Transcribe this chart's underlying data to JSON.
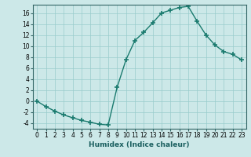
{
  "x": [
    0,
    1,
    2,
    3,
    4,
    5,
    6,
    7,
    8,
    9,
    10,
    11,
    12,
    13,
    14,
    15,
    16,
    17,
    18,
    19,
    20,
    21,
    22,
    23
  ],
  "y": [
    0,
    -1,
    -1.8,
    -2.5,
    -3,
    -3.5,
    -3.8,
    -4.2,
    -4.3,
    2.5,
    7.5,
    11,
    12.5,
    14.2,
    16.0,
    16.5,
    17.0,
    17.2,
    14.5,
    12.0,
    10.2,
    9.0,
    8.5,
    7.5
  ],
  "line_color": "#1a7a6e",
  "marker": "+",
  "marker_size": 4,
  "marker_lw": 1.2,
  "line_width": 1.0,
  "bg_color": "#cce8e8",
  "grid_color": "#99cccc",
  "xlabel": "Humidex (Indice chaleur)",
  "ylim": [
    -5,
    17.5
  ],
  "xlim": [
    -0.5,
    23.5
  ],
  "yticks": [
    -4,
    -2,
    0,
    2,
    4,
    6,
    8,
    10,
    12,
    14,
    16
  ],
  "xticks": [
    0,
    1,
    2,
    3,
    4,
    5,
    6,
    7,
    8,
    9,
    10,
    11,
    12,
    13,
    14,
    15,
    16,
    17,
    18,
    19,
    20,
    21,
    22,
    23
  ],
  "xtick_labels": [
    "0",
    "1",
    "2",
    "3",
    "4",
    "5",
    "6",
    "7",
    "8",
    "9",
    "10",
    "11",
    "12",
    "13",
    "14",
    "15",
    "16",
    "17",
    "18",
    "19",
    "20",
    "21",
    "22",
    "23"
  ],
  "label_fontsize": 6.5,
  "tick_fontsize": 5.5
}
